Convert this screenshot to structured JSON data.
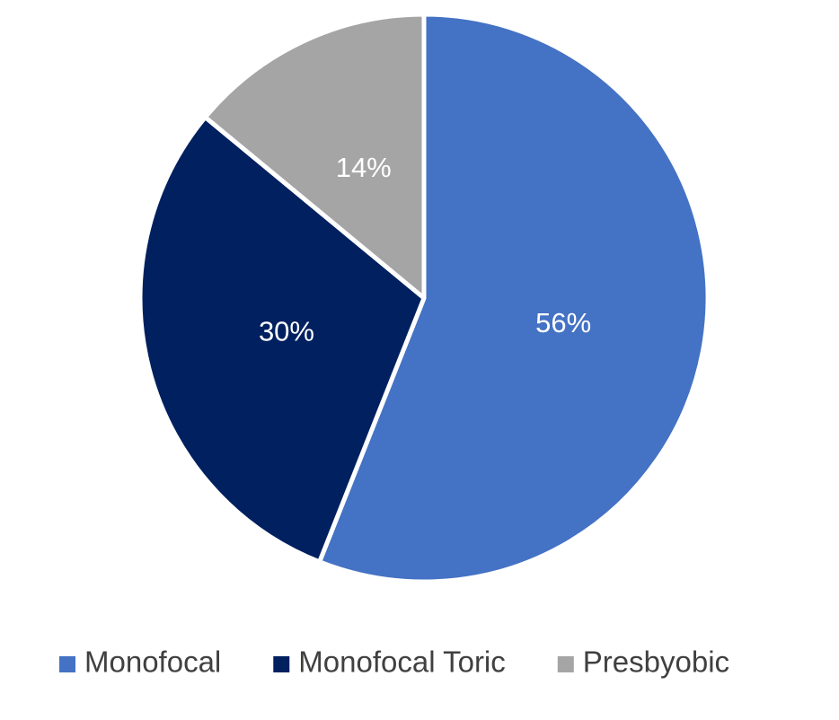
{
  "chart_data": {
    "type": "pie",
    "categories": [
      "Monofocal",
      "Monofocal Toric",
      "Presbyobic"
    ],
    "values": [
      56,
      30,
      14
    ],
    "value_labels": [
      "56%",
      "30%",
      "14%"
    ],
    "colors": [
      "#4472c4",
      "#002060",
      "#a5a5a5"
    ],
    "legend": "bottom"
  }
}
